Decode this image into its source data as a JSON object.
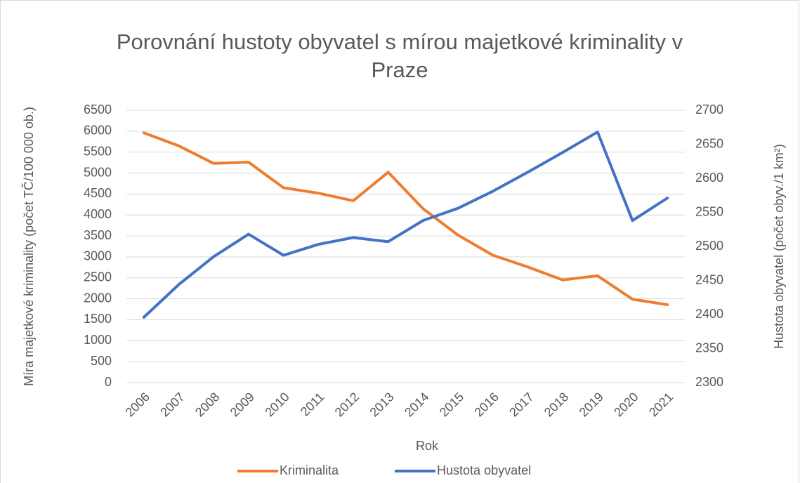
{
  "chart_data": {
    "type": "line",
    "title": "Porovnání hustoty obyvatel s mírou majetkové kriminality v Praze",
    "x_label": "Rok",
    "y_label": "Míra majetkové kriminality (počet TČ/100 000 ob.)",
    "y2_label": "Hustota obyvatel (počet obyv./1 km²)",
    "categories": [
      "2006",
      "2007",
      "2008",
      "2009",
      "2010",
      "2011",
      "2012",
      "2013",
      "2014",
      "2015",
      "2016",
      "2017",
      "2018",
      "2019",
      "2020",
      "2021"
    ],
    "series": [
      {
        "name": "Kriminalita",
        "color": "#ED7D31",
        "values": [
          5960,
          5650,
          5230,
          5260,
          4650,
          4520,
          4340,
          5020,
          4150,
          3520,
          3040,
          2760,
          2450,
          2550,
          1990,
          1860
        ]
      },
      {
        "name": "Hustota obyvatel",
        "color": "#4472C4",
        "axis": "y2",
        "values": [
          2396,
          2444,
          2485,
          2518,
          2487,
          2503,
          2513,
          2507,
          2538,
          2556,
          2581,
          2609,
          2638,
          2668,
          2538,
          2571
        ]
      }
    ],
    "ylim": [
      0,
      6500
    ],
    "yticks": [
      0,
      500,
      1000,
      1500,
      2000,
      2500,
      3000,
      3500,
      4000,
      4500,
      5000,
      5500,
      6000,
      6500
    ],
    "y2lim": [
      2300,
      2700
    ],
    "y2ticks": [
      2300,
      2350,
      2400,
      2450,
      2500,
      2550,
      2600,
      2650,
      2700
    ],
    "grid": true,
    "legend": "bottom"
  }
}
